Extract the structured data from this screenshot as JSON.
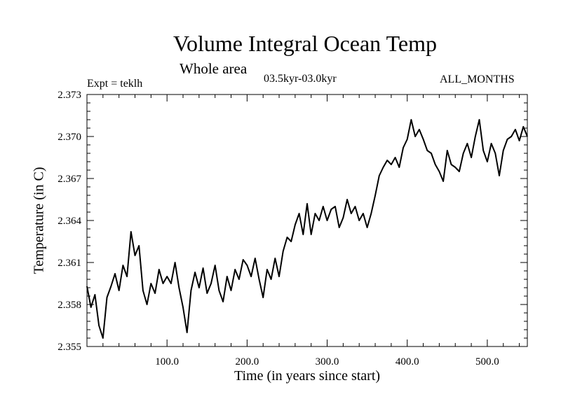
{
  "chart_data": {
    "type": "line",
    "title": "Volume Integral Ocean Temp",
    "subtitle": "Whole area",
    "period": "03.5kyr-03.0kyr",
    "left_label": "Expt = teklh",
    "right_label": "ALL_MONTHS",
    "xlabel": "Time (in years since start)",
    "ylabel": "Temperature (in C)",
    "xlim": [
      0,
      550
    ],
    "ylim": [
      2.355,
      2.373
    ],
    "x_ticks": [
      100,
      200,
      300,
      400,
      500
    ],
    "x_tick_labels": [
      "100.0",
      "200.0",
      "300.0",
      "400.0",
      "500.0"
    ],
    "y_ticks": [
      2.355,
      2.358,
      2.361,
      2.364,
      2.367,
      2.37,
      2.373
    ],
    "y_tick_labels": [
      "2.355",
      "2.358",
      "2.361",
      "2.364",
      "2.367",
      "2.370",
      "2.373"
    ],
    "series": [
      {
        "name": "Volume Integral Ocean Temp",
        "x": [
          0,
          5,
          10,
          15,
          20,
          25,
          30,
          35,
          40,
          45,
          50,
          55,
          60,
          65,
          70,
          75,
          80,
          85,
          90,
          95,
          100,
          105,
          110,
          115,
          120,
          125,
          130,
          135,
          140,
          145,
          150,
          155,
          160,
          165,
          170,
          175,
          180,
          185,
          190,
          195,
          200,
          205,
          210,
          215,
          220,
          225,
          230,
          235,
          240,
          245,
          250,
          255,
          260,
          265,
          270,
          275,
          280,
          285,
          290,
          295,
          300,
          305,
          310,
          315,
          320,
          325,
          330,
          335,
          340,
          345,
          350,
          355,
          360,
          365,
          370,
          375,
          380,
          385,
          390,
          395,
          400,
          405,
          410,
          415,
          420,
          425,
          430,
          435,
          440,
          445,
          450,
          455,
          460,
          465,
          470,
          475,
          480,
          485,
          490,
          495,
          500,
          505,
          510,
          515,
          520,
          525,
          530,
          535,
          540,
          545,
          550
        ],
        "values": [
          2.3593,
          2.3578,
          2.3587,
          2.3565,
          2.3556,
          2.3585,
          2.3593,
          2.3602,
          2.359,
          2.3608,
          2.36,
          2.3632,
          2.3615,
          2.3622,
          2.359,
          2.358,
          2.3595,
          2.3588,
          2.3605,
          2.3595,
          2.36,
          2.3595,
          2.361,
          2.3592,
          2.3578,
          2.356,
          2.359,
          2.3603,
          2.3592,
          2.3606,
          2.3588,
          2.3595,
          2.3608,
          2.359,
          2.3582,
          2.36,
          2.359,
          2.3605,
          2.3598,
          2.3612,
          2.3608,
          2.36,
          2.3613,
          2.3598,
          2.3585,
          2.3605,
          2.3598,
          2.3613,
          2.36,
          2.3618,
          2.3628,
          2.3625,
          2.3637,
          2.3645,
          2.363,
          2.3652,
          2.363,
          2.3645,
          2.364,
          2.365,
          2.364,
          2.3648,
          2.365,
          2.3635,
          2.3642,
          2.3655,
          2.3645,
          2.365,
          2.364,
          2.3645,
          2.3635,
          2.3645,
          2.3658,
          2.3672,
          2.3678,
          2.3683,
          2.368,
          2.3685,
          2.3678,
          2.3692,
          2.3698,
          2.3712,
          2.37,
          2.3705,
          2.3698,
          2.369,
          2.3688,
          2.368,
          2.3675,
          2.3668,
          2.369,
          2.368,
          2.3678,
          2.3675,
          2.3688,
          2.3695,
          2.3685,
          2.37,
          2.3712,
          2.369,
          2.3682,
          2.3695,
          2.3688,
          2.3672,
          2.369,
          2.3698,
          2.37,
          2.3705,
          2.3697,
          2.3707,
          2.37
        ]
      }
    ]
  }
}
